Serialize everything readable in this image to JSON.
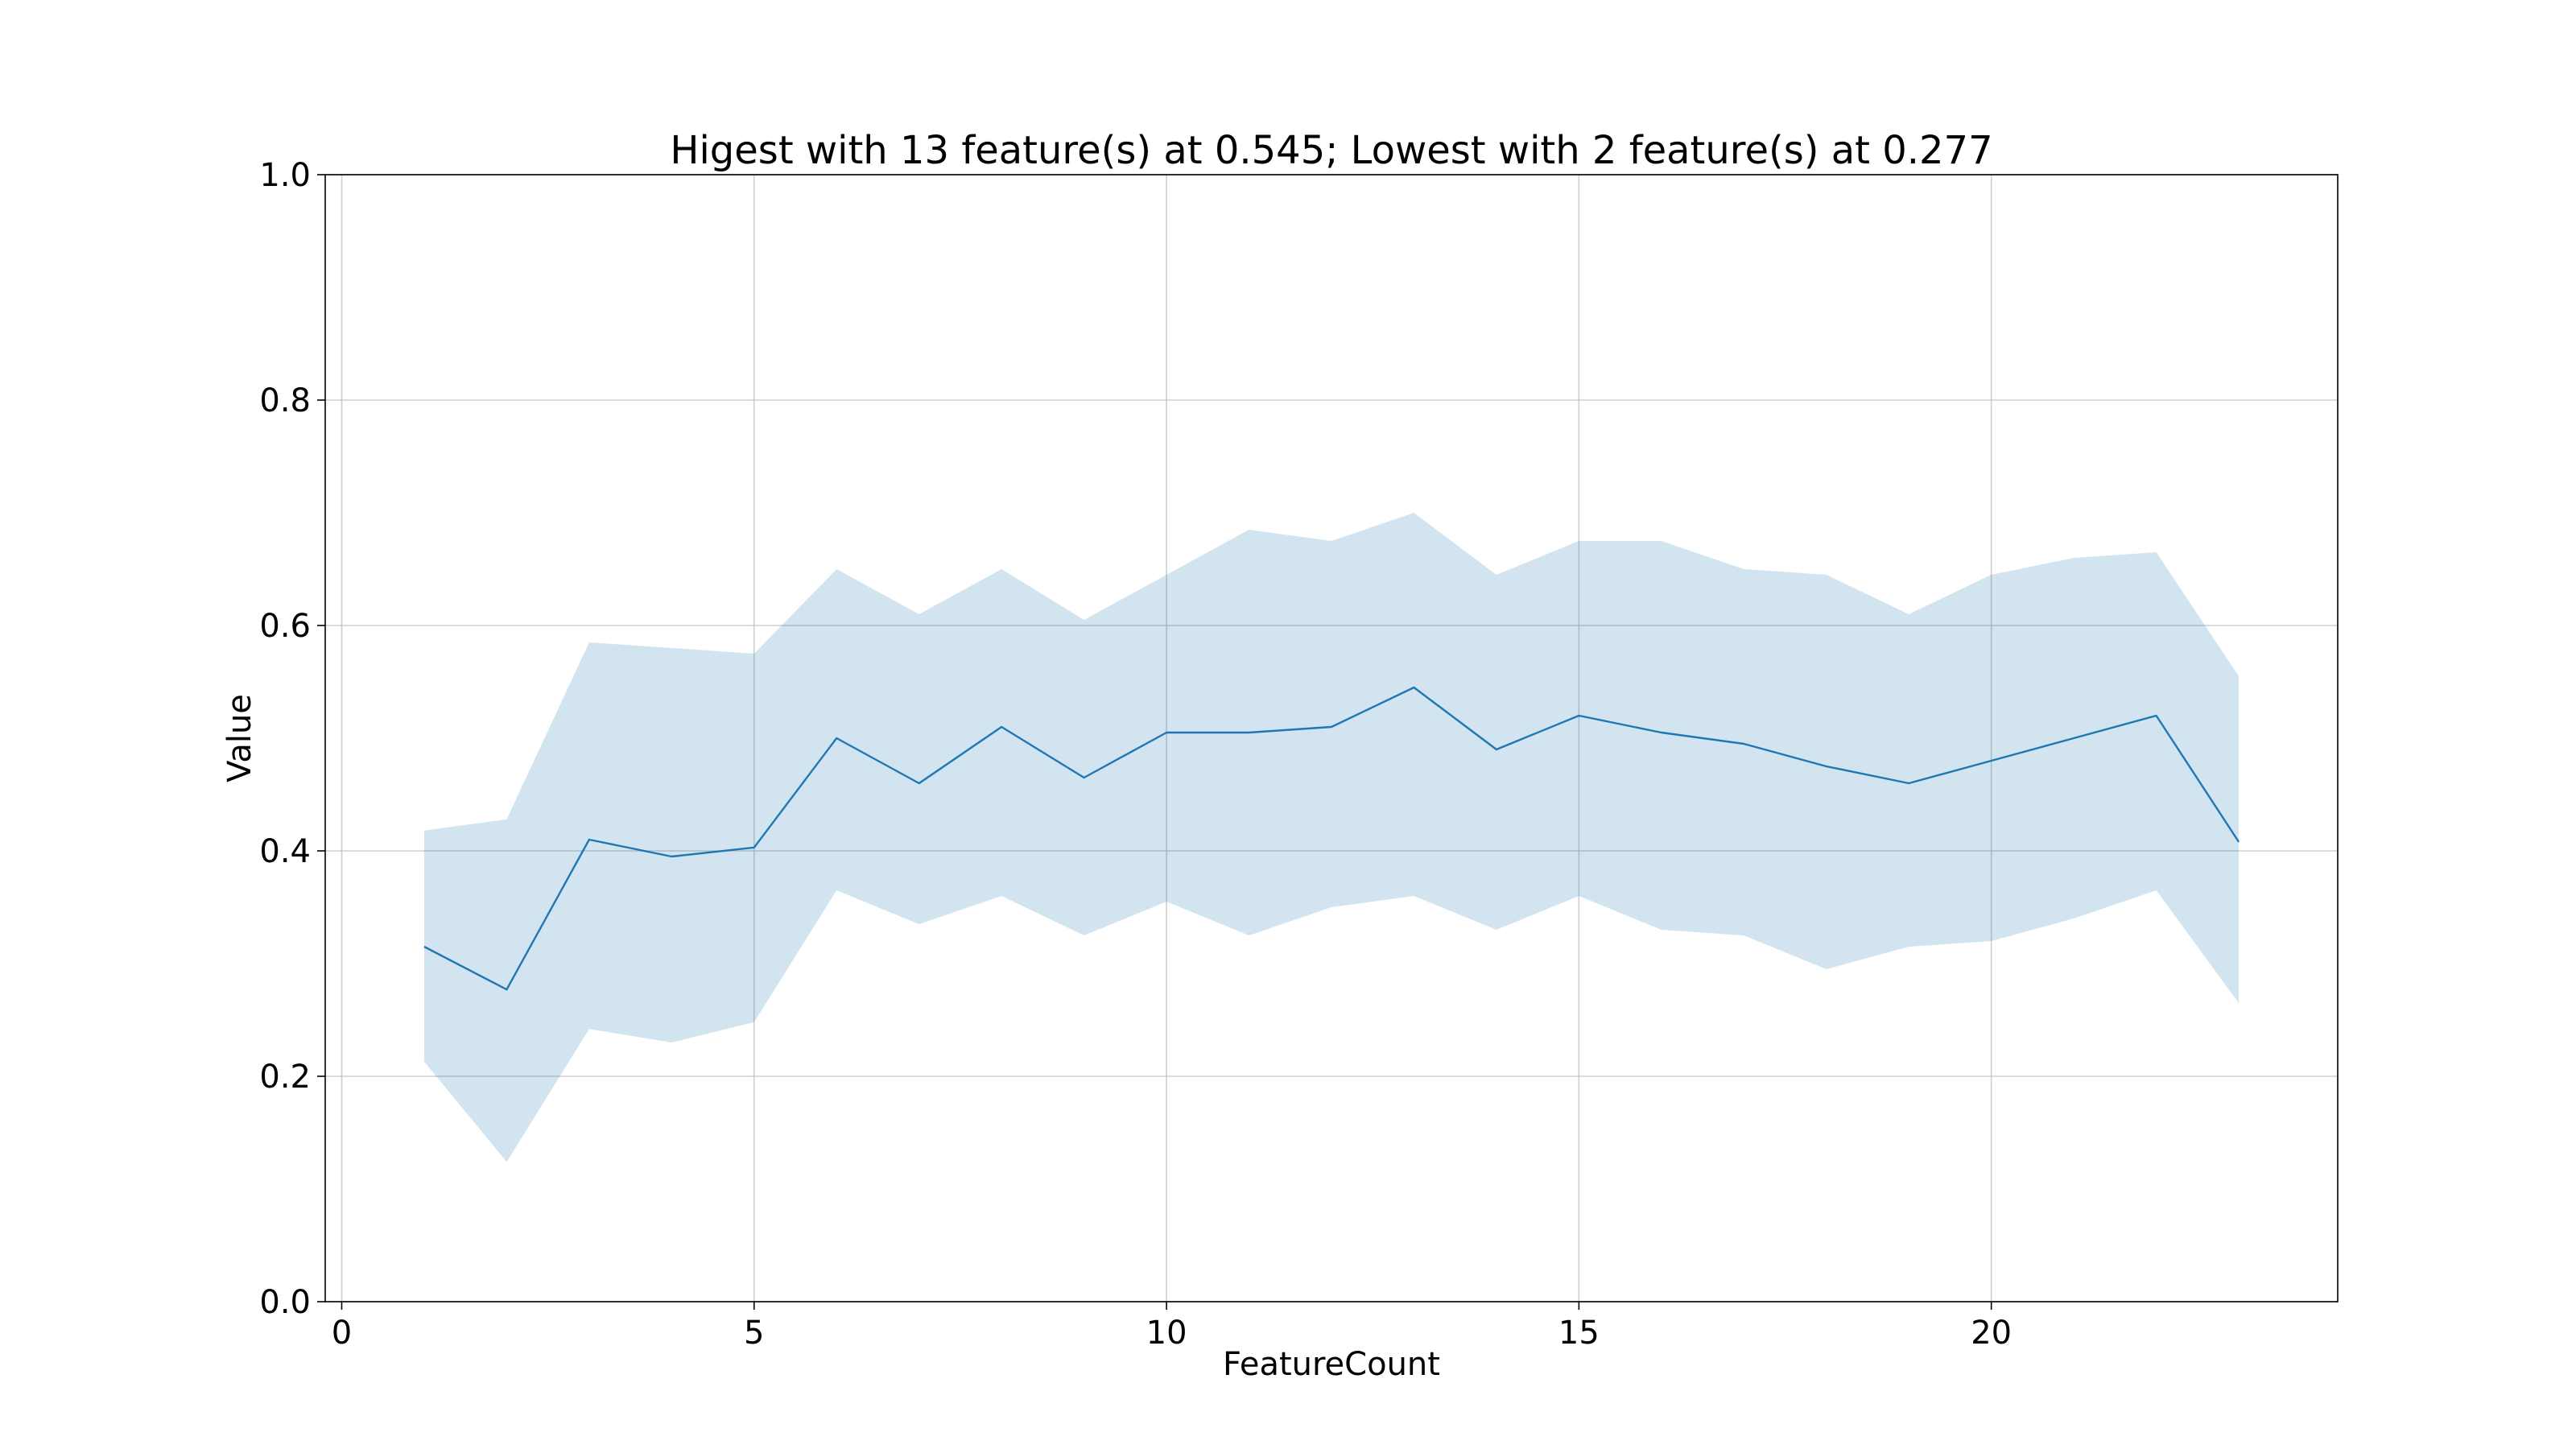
{
  "chart_data": {
    "type": "line",
    "title": "Higest with 13 feature(s) at 0.545; Lowest with 2 feature(s) at 0.277",
    "xlabel": "FeatureCount",
    "ylabel": "Value",
    "xlim": [
      -0.2,
      24.2
    ],
    "ylim": [
      0.0,
      1.0
    ],
    "xticks": [
      0,
      5,
      10,
      15,
      20
    ],
    "xtick_labels": [
      "0",
      "5",
      "10",
      "15",
      "20"
    ],
    "yticks": [
      0.0,
      0.2,
      0.4,
      0.6,
      0.8,
      1.0
    ],
    "ytick_labels": [
      "0.0",
      "0.2",
      "0.4",
      "0.6",
      "0.8",
      "1.0"
    ],
    "grid": true,
    "line_color": "#1f77b4",
    "band_color": "#1f77b4",
    "band_opacity": 0.2,
    "x": [
      1,
      2,
      3,
      4,
      5,
      6,
      7,
      8,
      9,
      10,
      11,
      12,
      13,
      14,
      15,
      16,
      17,
      18,
      19,
      20,
      21,
      22,
      23
    ],
    "series": [
      {
        "values": [
          0.315,
          0.277,
          0.41,
          0.395,
          0.403,
          0.5,
          0.46,
          0.51,
          0.465,
          0.505,
          0.505,
          0.51,
          0.545,
          0.49,
          0.52,
          0.505,
          0.495,
          0.475,
          0.46,
          0.48,
          0.5,
          0.52,
          0.408
        ],
        "upper": [
          0.418,
          0.428,
          0.585,
          0.58,
          0.575,
          0.65,
          0.61,
          0.65,
          0.605,
          0.645,
          0.685,
          0.675,
          0.7,
          0.645,
          0.675,
          0.675,
          0.65,
          0.645,
          0.61,
          0.645,
          0.66,
          0.665,
          0.555
        ],
        "lower": [
          0.213,
          0.124,
          0.242,
          0.23,
          0.248,
          0.365,
          0.335,
          0.36,
          0.325,
          0.355,
          0.325,
          0.35,
          0.36,
          0.33,
          0.36,
          0.33,
          0.325,
          0.295,
          0.315,
          0.32,
          0.34,
          0.365,
          0.265
        ]
      }
    ]
  }
}
